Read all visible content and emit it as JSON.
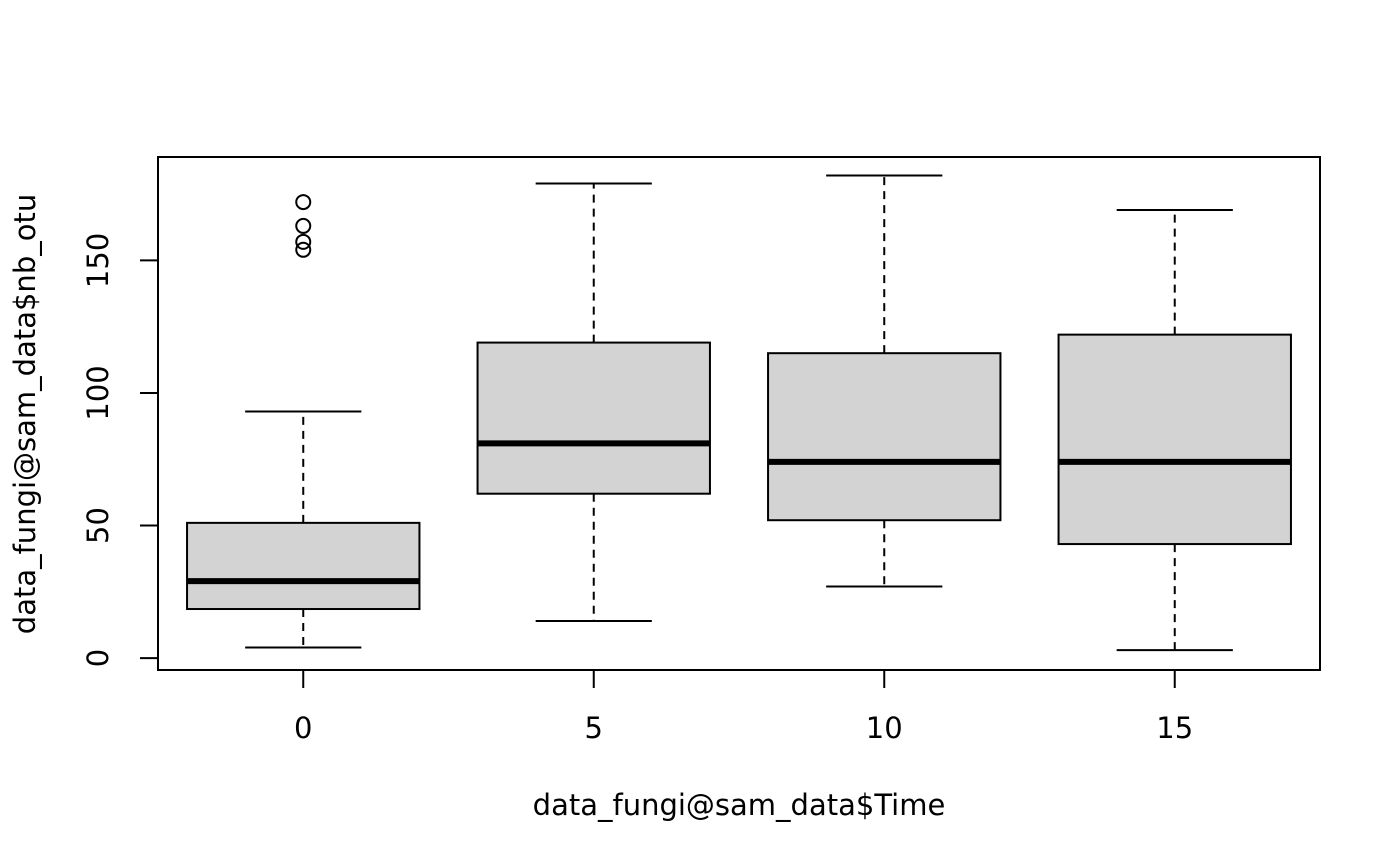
{
  "chart_data": {
    "type": "boxplot",
    "title": "",
    "xlabel": "data_fungi@sam_data$Time",
    "ylabel": "data_fungi@sam_data$nb_otu",
    "categories": [
      "0",
      "5",
      "10",
      "15"
    ],
    "boxes": [
      {
        "category": "0",
        "whisker_low": 4,
        "q1": 18.5,
        "median": 29,
        "q3": 51,
        "whisker_high": 93,
        "outliers": [
          154,
          157,
          163,
          172
        ]
      },
      {
        "category": "5",
        "whisker_low": 14,
        "q1": 62,
        "median": 81,
        "q3": 119,
        "whisker_high": 179,
        "outliers": []
      },
      {
        "category": "10",
        "whisker_low": 27,
        "q1": 52,
        "median": 74,
        "q3": 115,
        "whisker_high": 182,
        "outliers": []
      },
      {
        "category": "15",
        "whisker_low": 3,
        "q1": 43,
        "median": 74,
        "q3": 122,
        "whisker_high": 169,
        "outliers": []
      }
    ],
    "yticks": [
      "0",
      "50",
      "100",
      "150"
    ],
    "ylim": [
      -4.5,
      189
    ],
    "grid": false,
    "box_fill": "#d3d3d3",
    "line_color": "#000000"
  }
}
